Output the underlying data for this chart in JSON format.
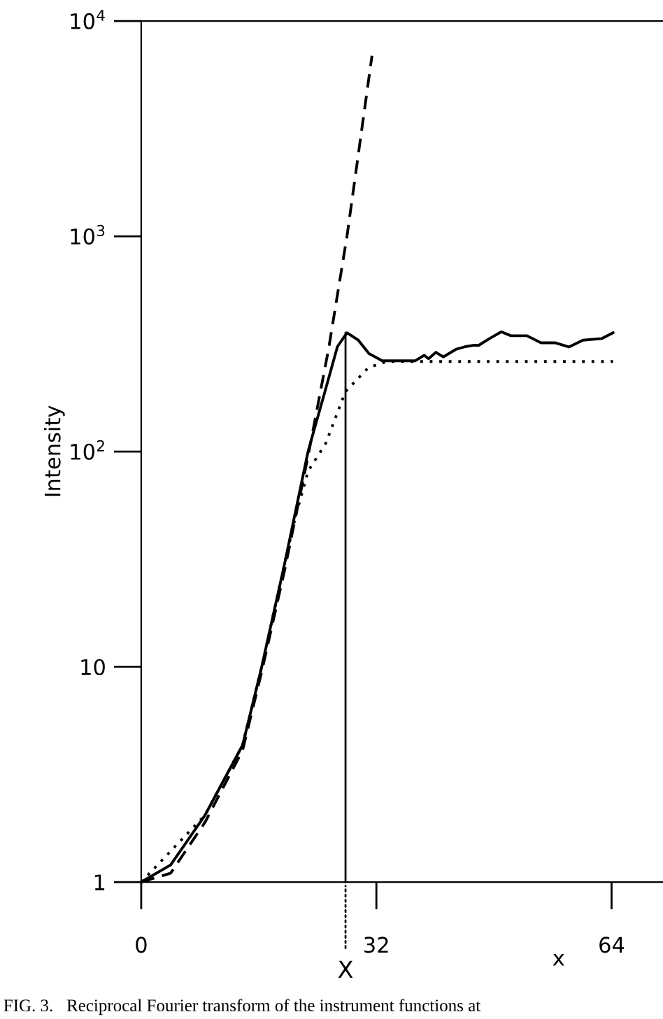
{
  "chart_data": {
    "type": "line",
    "ylabel": "Intensity",
    "log": "y",
    "xlim": [
      0,
      71
    ],
    "xticks": [
      0,
      32,
      64
    ],
    "ylim": [
      1,
      10000
    ],
    "yticks": [
      1,
      10,
      {
        "value": 100,
        "label": "10$^{2}$"
      },
      {
        "value": 1000,
        "label": "10$^{3}$"
      },
      {
        "value": 10000,
        "label": "10$^{4}$"
      }
    ],
    "grid": false,
    "legend": false,
    "marker": "none",
    "series": [
      {
        "color": "#000000",
        "line_style": "solid",
        "x": [
          0,
          4,
          8.7,
          13.8,
          16.4,
          19.5,
          22.7,
          25,
          26.7,
          28.0,
          29.5,
          31.0,
          32.8,
          37.3,
          38.5,
          39.1,
          40.1,
          41.1,
          42.8,
          44.1,
          45.3,
          45.9,
          47.4,
          49.0,
          50.3,
          52.5,
          54.4,
          56.3,
          58.2,
          60.1,
          62.7,
          64.2
        ],
        "values": [
          1,
          1.2,
          2.05,
          4.33,
          10,
          30,
          100,
          190,
          307,
          356,
          330,
          285,
          264,
          264,
          280,
          270,
          289,
          275,
          298,
          307,
          312,
          311,
          335,
          360,
          345,
          345,
          320,
          320,
          306,
          329,
          335,
          356
        ]
      },
      {
        "color": "#000000",
        "line_style": "dashed",
        "x": [
          0,
          4,
          8.7,
          13.8,
          16.4,
          19.5,
          22.7,
          25.5,
          28,
          31.4
        ],
        "values": [
          1,
          1.1,
          1.9,
          4.1,
          9.5,
          28,
          95,
          300,
          1000,
          6900
        ]
      },
      {
        "color": "#000000",
        "line_style": "dotted",
        "x": [
          0,
          8.7,
          13.8,
          16.4,
          19.5,
          21,
          22.7,
          25.1,
          27.8,
          30.9,
          33.4,
          64.2
        ],
        "values": [
          1,
          2.05,
          4.33,
          10,
          30,
          50,
          81,
          109,
          190,
          245,
          262,
          262
        ]
      },
      {
        "color": "#000000",
        "line_style": "solid",
        "x": [
          27.8,
          27.8
        ],
        "values": [
          1,
          356
        ]
      }
    ],
    "annotations": [
      "X",
      "x",
      "FIG. 3.   Reciprocal Fourier transform of the instrument functions at"
    ]
  }
}
